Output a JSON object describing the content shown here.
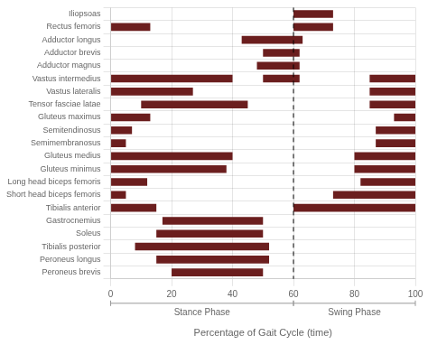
{
  "chart_data": {
    "type": "bar",
    "orientation": "horizontal",
    "categories": [
      "Iliopsoas",
      "Rectus femoris",
      "Adductor longus",
      "Adductor brevis",
      "Adductor magnus",
      "Vastus intermedius",
      "Vastus lateralis",
      "Tensor fasciae latae",
      "Gluteus maximus",
      "Semitendinosus",
      "Semimembranosus",
      "Gluteus medius",
      "Gluteus minimus",
      "Long head biceps femoris",
      "Short head biceps femoris",
      "Tibialis anterior",
      "Gastrocnemius",
      "Soleus",
      "Tibialis posterior",
      "Peroneus longus",
      "Peroneus brevis"
    ],
    "values": [
      [
        [
          60,
          73
        ]
      ],
      [
        [
          0,
          13
        ],
        [
          60,
          73
        ]
      ],
      [
        [
          43,
          63
        ]
      ],
      [
        [
          50,
          62
        ]
      ],
      [
        [
          48,
          62
        ]
      ],
      [
        [
          0,
          40
        ],
        [
          50,
          62
        ],
        [
          85,
          100
        ]
      ],
      [
        [
          0,
          27
        ],
        [
          85,
          100
        ]
      ],
      [
        [
          10,
          45
        ],
        [
          85,
          100
        ]
      ],
      [
        [
          0,
          13
        ],
        [
          93,
          100
        ]
      ],
      [
        [
          0,
          7
        ],
        [
          87,
          100
        ]
      ],
      [
        [
          0,
          5
        ],
        [
          87,
          100
        ]
      ],
      [
        [
          0,
          40
        ],
        [
          80,
          100
        ]
      ],
      [
        [
          0,
          38
        ],
        [
          80,
          100
        ]
      ],
      [
        [
          0,
          12
        ],
        [
          82,
          100
        ]
      ],
      [
        [
          0,
          5
        ],
        [
          73,
          100
        ]
      ],
      [
        [
          0,
          15
        ],
        [
          60,
          100
        ]
      ],
      [
        [
          17,
          50
        ]
      ],
      [
        [
          15,
          50
        ]
      ],
      [
        [
          8,
          52
        ]
      ],
      [
        [
          15,
          52
        ]
      ],
      [
        [
          20,
          50
        ]
      ]
    ],
    "color": "#6B1E1E",
    "xlabel": "Percentage of Gait Cycle (time)",
    "xlim": [
      0,
      100
    ],
    "xticks": [
      0,
      20,
      40,
      60,
      80,
      100
    ],
    "grid": true,
    "reference_lines": [
      {
        "x": 60,
        "line_style": "dashed",
        "color": "#000000"
      }
    ],
    "phases": [
      {
        "label": "Stance Phase",
        "range": [
          0,
          60
        ]
      },
      {
        "label": "Swing Phase",
        "range": [
          60,
          100
        ]
      }
    ]
  }
}
